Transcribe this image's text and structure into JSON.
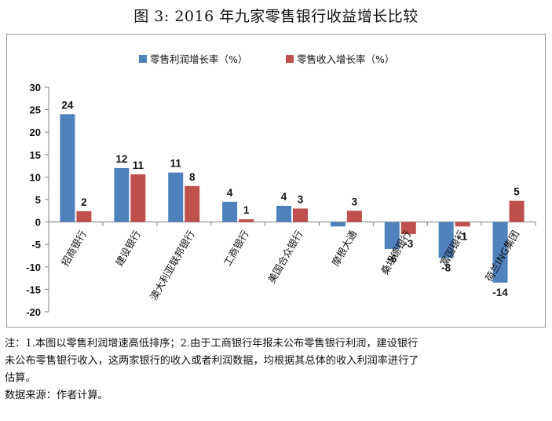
{
  "page": {
    "title": "图 3:   2016 年九家零售银行收益增长比较"
  },
  "notes": {
    "line1": "注：1.本图以零售利润增速高低排序；2.由于工商银行年报未公布零售银行利润，建设银行",
    "line2": "未公布零售银行收入，这两家银行的收入或者利润数据，均根据其总体的收入利润率进行了",
    "line3": "估算。",
    "source": "数据来源：作者计算。"
  },
  "chart_data": {
    "type": "bar",
    "categories": [
      "招商银行",
      "建设银行",
      "澳大利亚联邦银行",
      "工商银行",
      "美国合众银行",
      "摩根大通",
      "桑坦德银行",
      "富国银行",
      "荷兰ING集团"
    ],
    "series": [
      {
        "name": "零售利润增长率（%）",
        "color": "#4f81bd",
        "values": [
          24,
          12,
          11,
          4.5,
          3.6,
          -1,
          -6,
          -8,
          -13.5
        ],
        "labels": [
          "24",
          "12",
          "11",
          "4",
          "4",
          "",
          "-6",
          "-8",
          "-14"
        ]
      },
      {
        "name": "零售收入增长率（%）",
        "color": "#c0504d",
        "values": [
          2.4,
          10.6,
          8,
          0.6,
          3,
          2.5,
          -2.7,
          -1,
          4.7
        ],
        "labels": [
          "2",
          "11",
          "8",
          "1",
          "3",
          "3",
          "-3",
          "-1",
          "5"
        ]
      }
    ],
    "ylim": [
      -20,
      30
    ],
    "yticks": [
      -20,
      -15,
      -10,
      -5,
      0,
      5,
      10,
      15,
      20,
      25,
      30
    ],
    "legend_position": "top",
    "grid": false
  }
}
